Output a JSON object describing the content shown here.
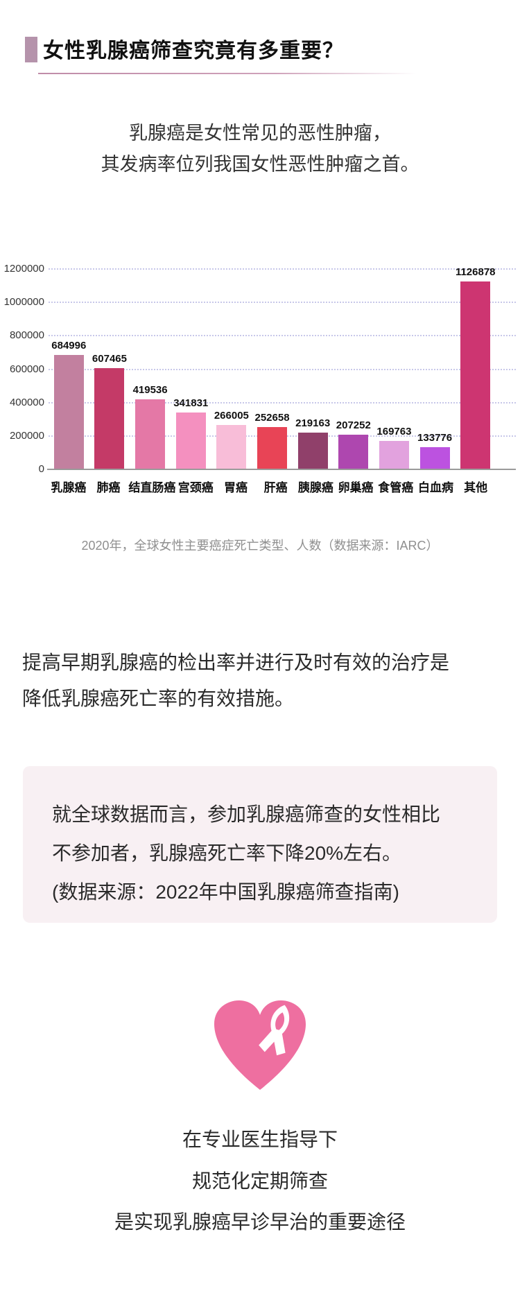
{
  "header": {
    "title": "女性乳腺癌筛查究竟有多重要？",
    "accent_color": "#b593ab",
    "underline_color": "#c08ca8"
  },
  "intro": {
    "line1": "乳腺癌是女性常见的恶性肿瘤，",
    "line2": "其发病率位列我国女性恶性肿瘤之首。"
  },
  "chart_data": {
    "type": "bar",
    "title": "2020年，全球女性主要癌症死亡类型、人数（数据来源：IARC）",
    "categories": [
      "乳腺癌",
      "肺癌",
      "结直肠癌",
      "宫颈癌",
      "胃癌",
      "肝癌",
      "胰腺癌",
      "卵巢癌",
      "食管癌",
      "白血病",
      "其他"
    ],
    "values": [
      684996,
      607465,
      419536,
      341831,
      266005,
      252658,
      219163,
      207252,
      169763,
      133776,
      1126878
    ],
    "bar_colors": [
      "#c2809f",
      "#c43a67",
      "#e478a6",
      "#f490bf",
      "#f8bdd8",
      "#e84456",
      "#90406a",
      "#ae47af",
      "#e2a2de",
      "#bc52e0",
      "#cd3571"
    ],
    "xlabel": "",
    "ylabel": "",
    "ylim": [
      0,
      1200000
    ],
    "y_ticks": [
      0,
      200000,
      400000,
      600000,
      800000,
      1000000,
      1200000
    ],
    "grid": true,
    "gridline_color": "#c7c7e9",
    "legend": "none",
    "value_labels": true
  },
  "caption": "2020年，全球女性主要癌症死亡类型、人数（数据来源：IARC）",
  "paragraph": {
    "line1": "提高早期乳腺癌的检出率并进行及时有效的治疗是",
    "line2": "降低乳腺癌死亡率的有效措施。"
  },
  "highlight_box": {
    "bg_color": "#f8f0f3",
    "line1": "就全球数据而言，参加乳腺癌筛查的女性相比",
    "line2": "不参加者，乳腺癌死亡率下降20%左右。",
    "line3": "(数据来源：2022年中国乳腺癌筛查指南)"
  },
  "heart_icon": {
    "name": "pink-heart-with-awareness-ribbon",
    "heart_color": "#ee6fa0",
    "ribbon_color": "#ffffff"
  },
  "footer": {
    "line1": "在专业医生指导下",
    "line2": "规范化定期筛查",
    "line3": "是实现乳腺癌早诊早治的重要途径"
  }
}
